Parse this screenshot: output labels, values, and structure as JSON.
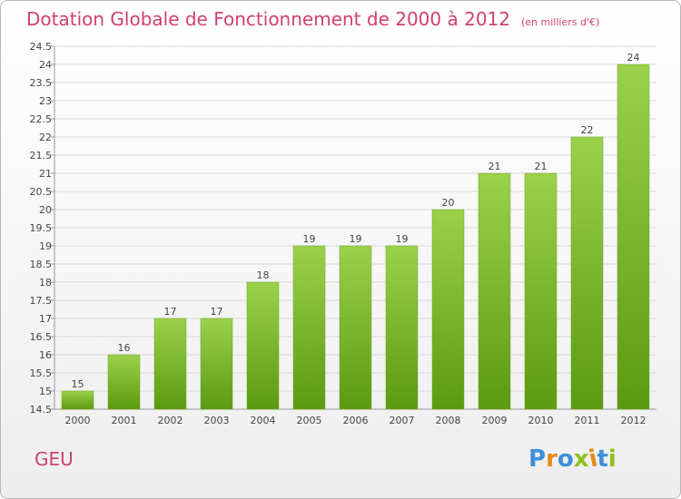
{
  "title": "Dotation Globale de Fonctionnement de 2000 à 2012",
  "subtitle": "(en milliers d'€)",
  "commune": "GEU",
  "logo": {
    "text": "Proxiti",
    "letter_colors": [
      "#3d8fd8",
      "#e88a1a",
      "#3d8fd8",
      "#8fbf1e",
      "#e88a1a",
      "#3d8fd8",
      "#8fbf1e"
    ]
  },
  "colors": {
    "title": "#d0406d",
    "bar_light": "#9bd14b",
    "bar_dark": "#5b9a10",
    "grid": "#d8d8d8",
    "text": "#444444"
  },
  "chart_data": {
    "type": "bar",
    "title": "Dotation Globale de Fonctionnement de 2000 à 2012",
    "subtitle": "(en milliers d'€)",
    "categories": [
      "2000",
      "2001",
      "2002",
      "2003",
      "2004",
      "2005",
      "2006",
      "2007",
      "2008",
      "2009",
      "2010",
      "2011",
      "2012"
    ],
    "values": [
      15,
      16,
      17,
      17,
      18,
      19,
      19,
      19,
      20,
      21,
      21,
      22,
      24
    ],
    "data_labels": [
      "15",
      "16",
      "17",
      "17",
      "18",
      "19",
      "19",
      "19",
      "20",
      "21",
      "21",
      "22",
      "24"
    ],
    "ylim": [
      14.5,
      24.5
    ],
    "yticks": [
      14.5,
      15,
      15.5,
      16,
      16.5,
      17,
      17.5,
      18,
      18.5,
      19,
      19.5,
      20,
      20.5,
      21,
      21.5,
      22,
      22.5,
      23,
      23.5,
      24,
      24.5
    ],
    "ytick_labels": [
      "14.5",
      "15",
      "15.5",
      "16",
      "16.5",
      "17",
      "17.5",
      "18",
      "18.5",
      "19",
      "19.5",
      "20",
      "20.5",
      "21",
      "21.5",
      "22",
      "22.5",
      "23",
      "23.5",
      "24",
      "24.5"
    ],
    "grid": true,
    "legend": false
  }
}
